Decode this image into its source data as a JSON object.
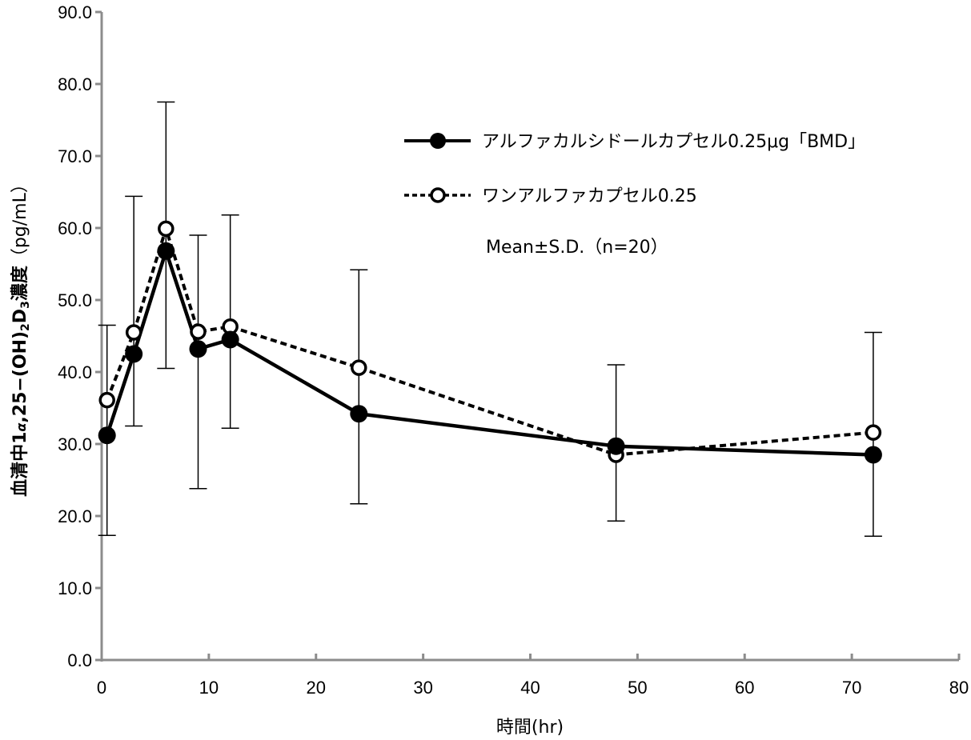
{
  "chart_data": {
    "type": "line",
    "title": "",
    "xlabel": "時間(hr)",
    "ylabel": "血清中1α,25-(OH)₂D₃濃度（pg/mL）",
    "ylabel_parts": {
      "main": "血清中1",
      "alpha": "α",
      "mid": ",25−(OH)",
      "sub2": "2",
      "d": "D",
      "sub3": "3",
      "tail": "濃度",
      "unit": "（pg/mL）"
    },
    "xlim": [
      0,
      80
    ],
    "ylim": [
      0,
      90
    ],
    "x_ticks": [
      0,
      10,
      20,
      30,
      40,
      50,
      60,
      70,
      80
    ],
    "x_tick_labels": [
      "0",
      "10",
      "20",
      "30",
      "40",
      "50",
      "60",
      "70",
      "80"
    ],
    "y_ticks": [
      0,
      10,
      20,
      30,
      40,
      50,
      60,
      70,
      80,
      90
    ],
    "y_tick_labels": [
      "0.0",
      "10.0",
      "20.0",
      "30.0",
      "40.0",
      "50.0",
      "60.0",
      "70.0",
      "80.0",
      "90.0"
    ],
    "grid": false,
    "legend_position": "top-right",
    "annotation": "Mean±S.D.（n=20）",
    "x": [
      0.5,
      3,
      6,
      9,
      12,
      24,
      48,
      72
    ],
    "series": [
      {
        "name": "アルファカルシドールカプセル0.25μg「BMD」",
        "marker": "filled-circle",
        "line": "solid",
        "values": [
          31.2,
          42.5,
          56.8,
          43.2,
          44.5,
          34.2,
          29.7,
          28.5
        ],
        "error_low": [
          17.3,
          32.5,
          40.5,
          23.8,
          32.2,
          21.7,
          19.3,
          17.2
        ]
      },
      {
        "name": "ワンアルファカプセル0.25",
        "marker": "open-circle",
        "line": "dashed",
        "values": [
          36.1,
          45.5,
          59.9,
          45.6,
          46.3,
          40.6,
          28.5,
          31.6
        ],
        "error_high": [
          46.5,
          64.4,
          77.5,
          59.0,
          61.8,
          54.2,
          41.0,
          45.5
        ]
      }
    ],
    "colors": {
      "axis": "#8c8c8c",
      "series": "#000000"
    }
  }
}
